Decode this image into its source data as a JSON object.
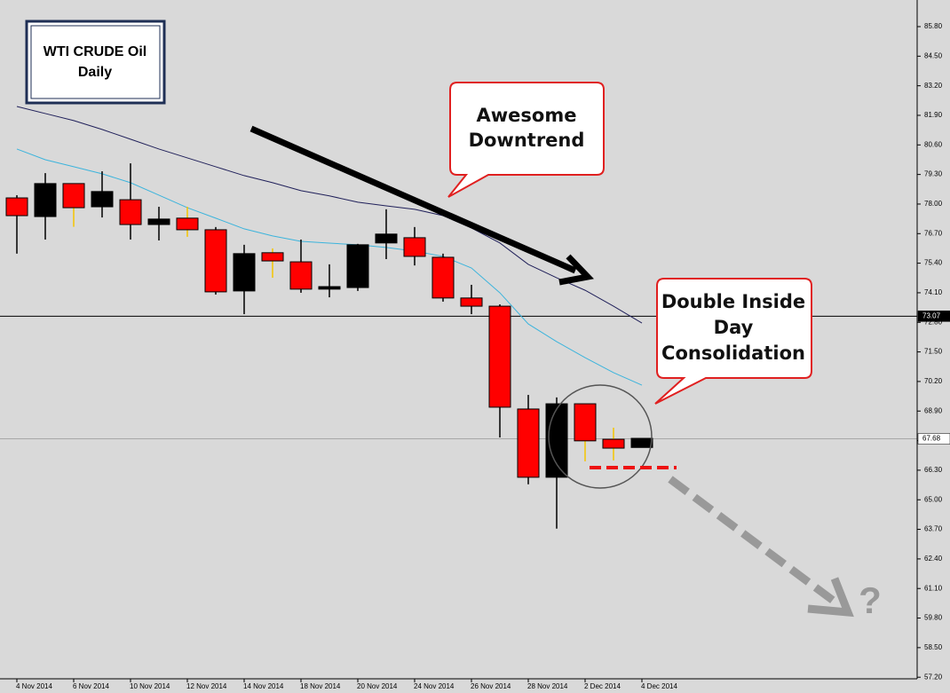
{
  "chart_data": {
    "type": "candlestick",
    "title": "WTI CRUDE Oil",
    "subtitle": "Daily",
    "categories": [
      "4 Nov 2014",
      null,
      "6 Nov 2014",
      null,
      "10 Nov 2014",
      null,
      "12 Nov 2014",
      null,
      "14 Nov 2014",
      null,
      "18 Nov 2014",
      null,
      "20 Nov 2014",
      null,
      "24 Nov 2014",
      null,
      "26 Nov 2014",
      null,
      "28 Nov 2014",
      null,
      "2 Dec 2014",
      null,
      "4 Dec 2014"
    ],
    "open": [
      78.27,
      77.45,
      78.9,
      77.88,
      78.19,
      77.1,
      77.38,
      76.87,
      74.18,
      75.86,
      75.46,
      74.26,
      74.33,
      76.29,
      76.52,
      75.66,
      73.87,
      73.51,
      68.99,
      65.99,
      69.22,
      67.66,
      67.3
    ],
    "high": [
      78.39,
      79.36,
      78.9,
      79.44,
      79.79,
      77.88,
      77.88,
      76.99,
      76.21,
      76.05,
      76.44,
      75.35,
      76.25,
      77.77,
      76.99,
      75.82,
      74.45,
      73.59,
      69.61,
      69.5,
      69.22,
      68.17,
      67.7
    ],
    "low": [
      75.82,
      76.44,
      77.0,
      77.41,
      76.44,
      76.4,
      76.56,
      74.02,
      73.16,
      74.76,
      74.1,
      73.9,
      74.18,
      75.58,
      75.3,
      73.71,
      73.16,
      67.74,
      65.68,
      63.73,
      66.69,
      66.73,
      67.3
    ],
    "close": [
      77.49,
      78.9,
      77.84,
      78.55,
      77.1,
      77.34,
      76.87,
      74.14,
      75.82,
      75.5,
      74.26,
      74.37,
      76.21,
      76.68,
      75.7,
      73.87,
      73.51,
      69.07,
      65.99,
      69.22,
      67.59,
      67.27,
      67.7
    ],
    "up_color": "#000000",
    "down_color": "#ff0000",
    "wick_colors": [
      "#000000",
      "#000000",
      "#f5c400",
      "#000000",
      "#000000",
      "#000000",
      "#f5c400",
      "#000000",
      "#000000",
      "#f5c400",
      "#000000",
      "#000000",
      "#000000",
      "#000000",
      "#000000",
      "#000000",
      "#000000",
      "#000000",
      "#000000",
      "#000000",
      "#f5c400",
      "#f5c400",
      "#000000"
    ],
    "moving_averages": [
      {
        "color": "#20205a",
        "values": [
          82.29,
          81.98,
          81.67,
          81.28,
          80.85,
          80.42,
          80.03,
          79.64,
          79.25,
          78.94,
          78.59,
          78.36,
          78.08,
          77.92,
          77.77,
          77.49,
          76.95,
          76.29,
          75.35,
          74.76,
          74.21,
          73.51,
          72.77
        ]
      },
      {
        "color": "#3cb4dc",
        "values": [
          80.42,
          79.95,
          79.64,
          79.33,
          78.94,
          78.39,
          77.84,
          77.38,
          76.91,
          76.6,
          76.36,
          76.28,
          76.21,
          76.09,
          75.93,
          75.7,
          75.19,
          74.1,
          72.73,
          71.95,
          71.25,
          70.59,
          70.04
        ]
      }
    ],
    "price_lines": [
      {
        "value": 73.07,
        "color": "#000000",
        "label_bg": "#000000",
        "label_color": "#ffffff"
      },
      {
        "value": 67.68,
        "color": "#a8a8a8",
        "label_bg": "#ffffff",
        "label_color": "#000000"
      }
    ],
    "ylim": [
      57.13,
      86.97
    ],
    "yticks": [
      {
        "value": 85.8,
        "label": "85.80"
      },
      {
        "value": 84.5,
        "label": "84.50"
      },
      {
        "value": 83.2,
        "label": "83.20"
      },
      {
        "value": 81.9,
        "label": "81.90"
      },
      {
        "value": 80.6,
        "label": "80.60"
      },
      {
        "value": 79.3,
        "label": "79.30"
      },
      {
        "value": 78.0,
        "label": "78.00"
      },
      {
        "value": 76.7,
        "label": "76.70"
      },
      {
        "value": 75.4,
        "label": "75.40"
      },
      {
        "value": 74.1,
        "label": "74.10"
      },
      {
        "value": 72.8,
        "label": "72.80"
      },
      {
        "value": 71.5,
        "label": "71.50"
      },
      {
        "value": 70.2,
        "label": "70.20"
      },
      {
        "value": 68.9,
        "label": "68.90"
      },
      {
        "value": 67.6,
        "label": "67.60"
      },
      {
        "value": 66.3,
        "label": "66.30"
      },
      {
        "value": 65.0,
        "label": "65.00"
      },
      {
        "value": 63.7,
        "label": "63.70"
      },
      {
        "value": 62.4,
        "label": "62.40"
      },
      {
        "value": 61.1,
        "label": "61.10"
      },
      {
        "value": 59.8,
        "label": "59.80"
      },
      {
        "value": 58.5,
        "label": "58.50"
      },
      {
        "value": 57.2,
        "label": "57.20"
      }
    ],
    "annotations": [
      [
        "Awesome",
        "Downtrend"
      ],
      [
        "Double Inside",
        "Day",
        "Consolidation"
      ],
      [
        "?"
      ]
    ]
  }
}
